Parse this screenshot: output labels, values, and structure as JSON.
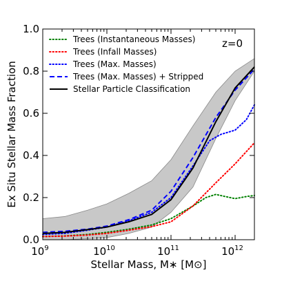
{
  "chart_data": {
    "type": "line",
    "xlabel": "Stellar Mass, M∗ [M⊙]",
    "ylabel": "Ex Situ Stellar Mass Fraction",
    "xscale": "log",
    "xlim": [
      1000000000.0,
      2000000000000.0
    ],
    "ylim": [
      0.0,
      1.0
    ],
    "grid": false,
    "legend_position": "top-left",
    "annotation": "z=0",
    "x_ticks": [
      {
        "value": 1000000000.0,
        "base": "10",
        "exp": "9"
      },
      {
        "value": 10000000000.0,
        "base": "10",
        "exp": "10"
      },
      {
        "value": 100000000000.0,
        "base": "10",
        "exp": "11"
      },
      {
        "value": 1000000000000.0,
        "base": "10",
        "exp": "12"
      }
    ],
    "y_ticks": [
      "0.0",
      "0.2",
      "0.4",
      "0.6",
      "0.8",
      "1.0"
    ],
    "band": {
      "color": "#c8c8c8",
      "x": [
        1000000000.0,
        2200000000.0,
        5000000000.0,
        10000000000.0,
        22000000000.0,
        50000000000.0,
        100000000000.0,
        220000000000.0,
        500000000000.0,
        1000000000000.0,
        2000000000000.0
      ],
      "lower": [
        0.0,
        0.0,
        0.005,
        0.01,
        0.03,
        0.06,
        0.13,
        0.25,
        0.48,
        0.66,
        0.8
      ],
      "upper": [
        0.1,
        0.11,
        0.14,
        0.17,
        0.22,
        0.28,
        0.38,
        0.54,
        0.7,
        0.8,
        0.86
      ]
    },
    "series": [
      {
        "name": "Trees (Instantaneous Masses)",
        "color": "#008000",
        "style": "dotted",
        "x": [
          1000000000.0,
          2200000000.0,
          5000000000.0,
          10000000000.0,
          22000000000.0,
          50000000000.0,
          100000000000.0,
          220000000000.0,
          350000000000.0,
          500000000000.0,
          700000000000.0,
          1000000000000.0,
          1500000000000.0,
          2000000000000.0
        ],
        "y": [
          0.015,
          0.018,
          0.025,
          0.035,
          0.05,
          0.07,
          0.1,
          0.16,
          0.2,
          0.215,
          0.205,
          0.195,
          0.205,
          0.21
        ]
      },
      {
        "name": "Trees (Infall Masses)",
        "color": "#ff0000",
        "style": "dotted",
        "x": [
          1000000000.0,
          2200000000.0,
          5000000000.0,
          10000000000.0,
          22000000000.0,
          50000000000.0,
          100000000000.0,
          220000000000.0,
          500000000000.0,
          1000000000000.0,
          2000000000000.0
        ],
        "y": [
          0.015,
          0.017,
          0.022,
          0.03,
          0.045,
          0.062,
          0.085,
          0.16,
          0.27,
          0.36,
          0.46
        ]
      },
      {
        "name": "Trees (Max. Masses)",
        "color": "#0000ff",
        "style": "dotted",
        "x": [
          1000000000.0,
          2200000000.0,
          5000000000.0,
          10000000000.0,
          22000000000.0,
          50000000000.0,
          100000000000.0,
          220000000000.0,
          400000000000.0,
          600000000000.0,
          1000000000000.0,
          1500000000000.0,
          2000000000000.0
        ],
        "y": [
          0.025,
          0.03,
          0.045,
          0.06,
          0.09,
          0.13,
          0.2,
          0.35,
          0.47,
          0.5,
          0.52,
          0.57,
          0.64
        ]
      },
      {
        "name": "Trees (Max. Masses) + Stripped",
        "color": "#0000ff",
        "style": "dashed",
        "x": [
          1000000000.0,
          2200000000.0,
          5000000000.0,
          10000000000.0,
          22000000000.0,
          50000000000.0,
          100000000000.0,
          220000000000.0,
          500000000000.0,
          1000000000000.0,
          2000000000000.0
        ],
        "y": [
          0.035,
          0.04,
          0.05,
          0.065,
          0.095,
          0.14,
          0.23,
          0.39,
          0.58,
          0.71,
          0.81
        ]
      },
      {
        "name": "Stellar Particle Classification",
        "color": "#000000",
        "style": "solid",
        "x": [
          1000000000.0,
          2200000000.0,
          5000000000.0,
          10000000000.0,
          22000000000.0,
          50000000000.0,
          100000000000.0,
          220000000000.0,
          500000000000.0,
          1000000000000.0,
          2000000000000.0
        ],
        "y": [
          0.03,
          0.035,
          0.048,
          0.06,
          0.085,
          0.12,
          0.19,
          0.34,
          0.56,
          0.72,
          0.82
        ]
      }
    ]
  }
}
